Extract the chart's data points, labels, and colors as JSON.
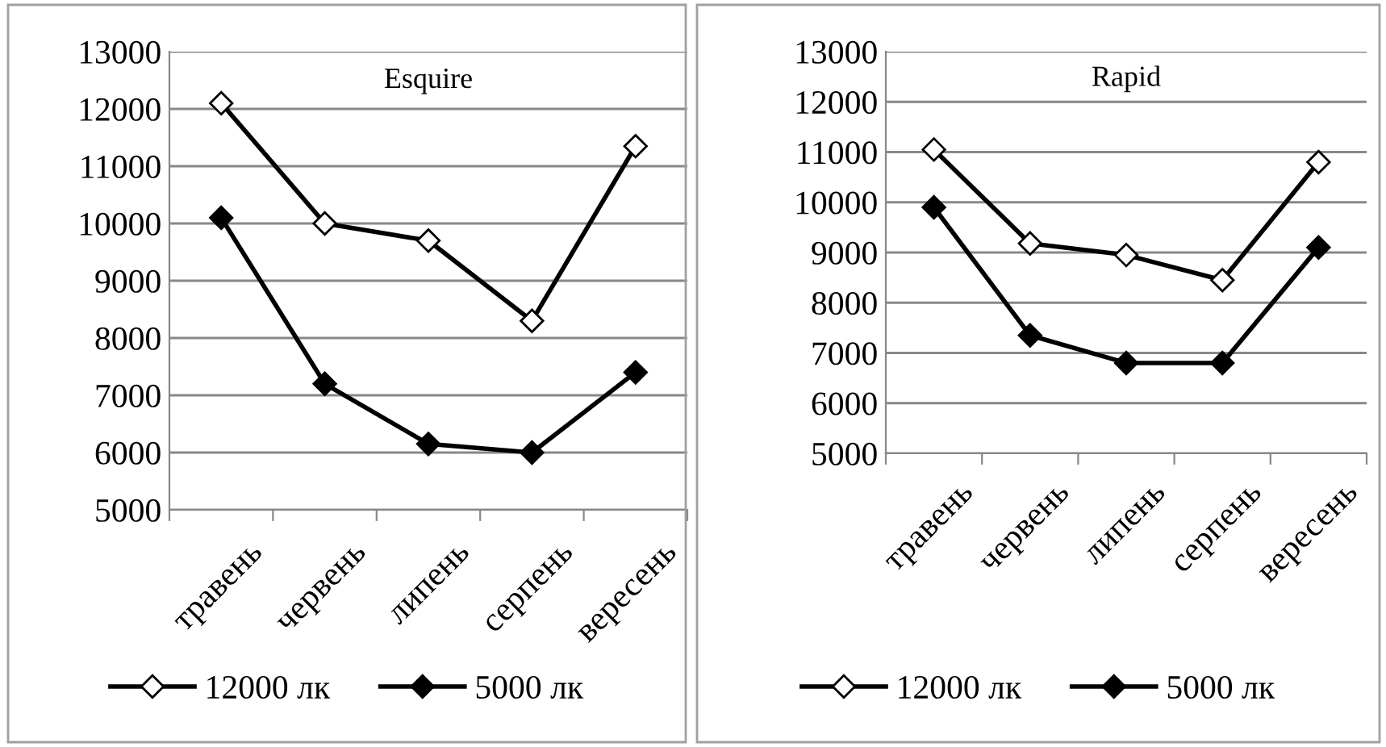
{
  "chart_data": [
    {
      "type": "line",
      "title": "Esquire",
      "categories": [
        "травень",
        "червень",
        "липень",
        "серпень",
        "вересень"
      ],
      "ylim": [
        5000,
        13000
      ],
      "yticks": [
        5000,
        6000,
        7000,
        8000,
        9000,
        10000,
        11000,
        12000,
        13000
      ],
      "grid": "y",
      "legend": "bottom",
      "marker": "diamond",
      "line_style": "solid",
      "series": [
        {
          "name": "12000 лк",
          "color": "#000000",
          "values": [
            12100,
            10000,
            9700,
            8300,
            11350
          ]
        },
        {
          "name": "5000 лк",
          "color": "#000000",
          "values": [
            10100,
            7200,
            6150,
            6000,
            7400
          ]
        }
      ]
    },
    {
      "type": "line",
      "title": "Rapid",
      "categories": [
        "травень",
        "червень",
        "липень",
        "серпень",
        "вересень"
      ],
      "ylim": [
        5000,
        13000
      ],
      "yticks": [
        5000,
        6000,
        7000,
        8000,
        9000,
        10000,
        11000,
        12000,
        13000
      ],
      "grid": "y",
      "legend": "bottom",
      "marker": "diamond",
      "line_style": "solid",
      "series": [
        {
          "name": "12000 лк",
          "color": "#000000",
          "values": [
            11050,
            9180,
            8950,
            8450,
            10800
          ]
        },
        {
          "name": "5000 лк",
          "color": "#000000",
          "values": [
            9900,
            7350,
            6800,
            6800,
            9100
          ]
        }
      ]
    }
  ]
}
